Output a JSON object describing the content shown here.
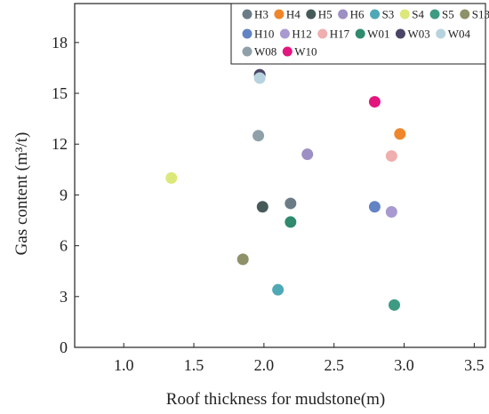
{
  "chart_data": {
    "type": "scatter",
    "xlabel": "Roof thickness for mudstone(m)",
    "ylabel": "Gas content (m³/t)",
    "xlim": [
      0.65,
      3.58
    ],
    "ylim": [
      0,
      20.3
    ],
    "xticks": [
      "1.0",
      "1.5",
      "2.0",
      "2.5",
      "3.0",
      "3.5"
    ],
    "xtick_values": [
      1.0,
      1.5,
      2.0,
      2.5,
      3.0,
      3.5
    ],
    "yticks": [
      "0",
      "3",
      "6",
      "9",
      "12",
      "15",
      "18"
    ],
    "ytick_values": [
      0,
      3,
      6,
      9,
      12,
      15,
      18
    ],
    "grid": false,
    "legend_position": "top-right",
    "series": [
      {
        "name": "H3",
        "color": "#6b7c87",
        "points": [
          [
            2.19,
            8.5
          ]
        ]
      },
      {
        "name": "H4",
        "color": "#f0862a",
        "points": [
          [
            2.97,
            12.6
          ]
        ]
      },
      {
        "name": "H5",
        "color": "#465b59",
        "points": [
          [
            1.99,
            8.3
          ]
        ]
      },
      {
        "name": "H6",
        "color": "#9d8ec3",
        "points": [
          [
            2.31,
            11.4
          ]
        ]
      },
      {
        "name": "S3",
        "color": "#4ea8b6",
        "points": [
          [
            2.1,
            3.4
          ]
        ]
      },
      {
        "name": "S4",
        "color": "#dce87a",
        "points": [
          [
            1.34,
            10.0
          ]
        ]
      },
      {
        "name": "S5",
        "color": "#3e9b83",
        "points": [
          [
            2.93,
            2.5
          ]
        ]
      },
      {
        "name": "S13",
        "color": "#8f916a",
        "points": [
          [
            1.85,
            5.2
          ]
        ]
      },
      {
        "name": "H10",
        "color": "#6283c4",
        "points": [
          [
            2.79,
            8.3
          ]
        ]
      },
      {
        "name": "H12",
        "color": "#a89ad0",
        "points": [
          [
            2.91,
            8.0
          ]
        ]
      },
      {
        "name": "H17",
        "color": "#efafaf",
        "points": [
          [
            2.91,
            11.3
          ]
        ]
      },
      {
        "name": "W01",
        "color": "#2f8a6e",
        "points": [
          [
            2.19,
            7.4
          ]
        ]
      },
      {
        "name": "W03",
        "color": "#4a4566",
        "points": [
          [
            1.97,
            16.1
          ]
        ]
      },
      {
        "name": "W04",
        "color": "#b7d3df",
        "points": [
          [
            1.97,
            15.9
          ]
        ]
      },
      {
        "name": "W08",
        "color": "#8fa0a8",
        "points": [
          [
            1.96,
            12.5
          ]
        ]
      },
      {
        "name": "W10",
        "color": "#e3157f",
        "points": [
          [
            2.79,
            14.5
          ]
        ]
      }
    ]
  }
}
